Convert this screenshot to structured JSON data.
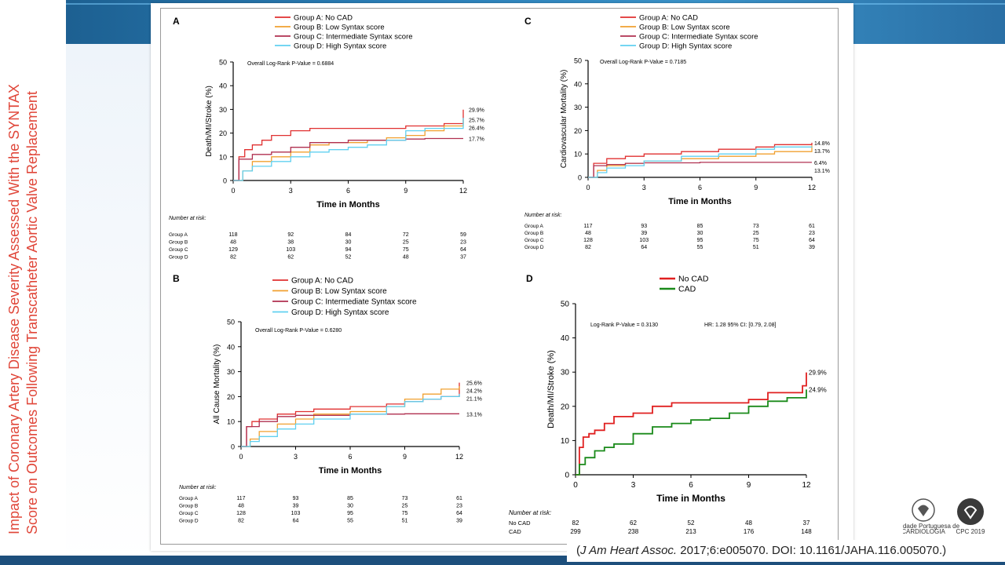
{
  "slide": {
    "side_title": "Impact of Coronary Artery Disease Severity Assessed With the SYNTAX Score on Outcomes Following Transcatheter Aortic Valve Replacement",
    "citation_journal": "J Am Heart Assoc.",
    "citation_rest": " 2017;6:e005070. DOI: 10.1161/JAHA.116.005070.)",
    "citation_open": "(",
    "logo1_line1": "Sociedade Portuguesa de",
    "logo1_line2": "CARDIOLOGIA",
    "logo2_label": "CPC 2019"
  },
  "colors": {
    "groupA": "#e03030",
    "groupB": "#f0a030",
    "groupC": "#b03050",
    "groupD": "#60d0f0",
    "noCAD": "#e02020",
    "CAD": "#1a8a1a",
    "accent": "#e0473a"
  },
  "chart_data": [
    {
      "panel": "A",
      "type": "line",
      "xlabel": "Time in Months",
      "ylabel": "Death/MI/Stroke (%)",
      "xlim": [
        0,
        12
      ],
      "ylim": [
        0,
        50
      ],
      "xticks": [
        0,
        3,
        6,
        9,
        12
      ],
      "yticks": [
        0,
        10,
        20,
        30,
        40,
        50
      ],
      "stat": "Overall Log-Rank P-Value = 0.6884",
      "series": [
        {
          "name": "Group A: No CAD",
          "color_key": "groupA",
          "x": [
            0,
            0.3,
            0.6,
            1,
            1.5,
            2,
            3,
            4,
            6,
            8,
            9,
            10,
            11,
            12
          ],
          "y": [
            0,
            10,
            13,
            15,
            17,
            19,
            21,
            22,
            22,
            22,
            23,
            23,
            24,
            29.9
          ],
          "end_label": "29.9%"
        },
        {
          "name": "Group B: Low Syntax score",
          "color_key": "groupB",
          "x": [
            0,
            0.5,
            1,
            2,
            3,
            4,
            5,
            6,
            7,
            8,
            9,
            10,
            11,
            12
          ],
          "y": [
            0,
            4,
            8,
            10,
            12,
            15,
            16,
            16,
            17,
            18,
            19,
            21,
            23,
            25.7
          ],
          "end_label": "25.7%"
        },
        {
          "name": "Group C: Intermediate Syntax score",
          "color_key": "groupC",
          "x": [
            0,
            0.3,
            1,
            2,
            3,
            4,
            6,
            8,
            9,
            10,
            11,
            12
          ],
          "y": [
            0,
            9,
            11,
            12,
            14,
            16,
            17,
            17,
            17.5,
            17.7,
            17.7,
            17.7
          ],
          "end_label": "17.7%"
        },
        {
          "name": "Group D: High Syntax score",
          "color_key": "groupD",
          "x": [
            0,
            0.5,
            1,
            2,
            3,
            4,
            5,
            6,
            7,
            8,
            9,
            10,
            11,
            12
          ],
          "y": [
            0,
            4,
            6,
            8,
            10,
            12,
            13,
            14,
            15,
            17,
            21,
            22,
            22,
            26.4
          ],
          "end_label": "26.4%"
        }
      ],
      "risk_title": "Number at risk:",
      "risk_times": [
        0,
        3,
        6,
        9,
        12
      ],
      "risk_rows": [
        {
          "label": "Group A",
          "values": [
            "118",
            "92",
            "84",
            "72",
            "59"
          ]
        },
        {
          "label": "Group B",
          "values": [
            "48",
            "38",
            "30",
            "25",
            "23"
          ]
        },
        {
          "label": "Group C",
          "values": [
            "129",
            "103",
            "94",
            "75",
            "64"
          ]
        },
        {
          "label": "Group D",
          "values": [
            "82",
            "62",
            "52",
            "48",
            "37"
          ]
        }
      ]
    },
    {
      "panel": "C",
      "type": "line",
      "xlabel": "Time in Months",
      "ylabel": "Cardiovascular Mortality (%)",
      "xlim": [
        0,
        12
      ],
      "ylim": [
        0,
        50
      ],
      "xticks": [
        0,
        3,
        6,
        9,
        12
      ],
      "yticks": [
        0,
        10,
        20,
        30,
        40,
        50
      ],
      "stat": "Overall Log-Rank P-Value = 0.7185",
      "series": [
        {
          "name": "Group A: No CAD",
          "color_key": "groupA",
          "x": [
            0,
            0.3,
            1,
            2,
            3,
            5,
            7,
            9,
            10,
            12
          ],
          "y": [
            0,
            6,
            8,
            9,
            10,
            11,
            12,
            13,
            14,
            14.8
          ],
          "end_label": "14.8%"
        },
        {
          "name": "Group B: Low Syntax score",
          "color_key": "groupB",
          "x": [
            0,
            0.5,
            1,
            2,
            3,
            5,
            7,
            9,
            10,
            12
          ],
          "y": [
            0,
            3,
            5,
            6,
            7,
            8,
            9,
            10,
            11,
            13.7
          ],
          "end_label": "13.7%"
        },
        {
          "name": "Group C: Intermediate Syntax score",
          "color_key": "groupC",
          "x": [
            0,
            0.3,
            1,
            2,
            3,
            6,
            9,
            12
          ],
          "y": [
            0,
            5,
            5.5,
            6,
            6.2,
            6.4,
            6.4,
            6.4
          ],
          "end_label": "6.4%"
        },
        {
          "name": "Group D: High Syntax score",
          "color_key": "groupD",
          "x": [
            0,
            0.5,
            1,
            2,
            3,
            5,
            7,
            9,
            10,
            12
          ],
          "y": [
            0,
            2,
            4,
            5,
            7,
            9,
            10,
            12,
            13,
            13.1
          ],
          "end_label": "13.1%"
        }
      ],
      "risk_title": "Number at risk:",
      "risk_times": [
        0,
        3,
        6,
        9,
        12
      ],
      "risk_rows": [
        {
          "label": "Group A",
          "values": [
            "117",
            "93",
            "85",
            "73",
            "61"
          ]
        },
        {
          "label": "Group B",
          "values": [
            "48",
            "39",
            "30",
            "25",
            "23"
          ]
        },
        {
          "label": "Group C",
          "values": [
            "128",
            "103",
            "95",
            "75",
            "64"
          ]
        },
        {
          "label": "Group D",
          "values": [
            "82",
            "64",
            "55",
            "51",
            "39"
          ]
        }
      ]
    },
    {
      "panel": "B",
      "type": "line",
      "xlabel": "Time in Months",
      "ylabel": "All Cause Mortality (%)",
      "xlim": [
        0,
        12
      ],
      "ylim": [
        0,
        50
      ],
      "xticks": [
        0,
        3,
        6,
        9,
        12
      ],
      "yticks": [
        0,
        10,
        20,
        30,
        40,
        50
      ],
      "stat": "Overall Log-Rank P-Value = 0.6280",
      "series": [
        {
          "name": "Group A: No CAD",
          "color_key": "groupA",
          "x": [
            0,
            0.3,
            0.6,
            1,
            2,
            3,
            4,
            6,
            8,
            9,
            10,
            11,
            12
          ],
          "y": [
            0,
            8,
            10,
            11,
            13,
            14,
            15,
            16,
            17,
            18,
            19,
            20,
            25.6
          ],
          "end_label": "25.6%"
        },
        {
          "name": "Group B: Low Syntax score",
          "color_key": "groupB",
          "x": [
            0,
            0.5,
            1,
            2,
            3,
            4,
            6,
            8,
            9,
            10,
            11,
            12
          ],
          "y": [
            0,
            3,
            6,
            9,
            11,
            13,
            14,
            16,
            19,
            21,
            23,
            24.2
          ],
          "end_label": "24.2%"
        },
        {
          "name": "Group C: Intermediate Syntax score",
          "color_key": "groupC",
          "x": [
            0,
            0.3,
            1,
            2,
            3,
            6,
            9,
            12
          ],
          "y": [
            0,
            8,
            10,
            12,
            12.5,
            13,
            13.1,
            13.1
          ],
          "end_label": "13.1%"
        },
        {
          "name": "Group D: High Syntax score",
          "color_key": "groupD",
          "x": [
            0,
            0.5,
            1,
            2,
            3,
            4,
            6,
            8,
            9,
            10,
            11,
            12
          ],
          "y": [
            0,
            2,
            4,
            7,
            9,
            11,
            13,
            16,
            18,
            19,
            20,
            21.1
          ],
          "end_label": "21.1%"
        }
      ],
      "risk_title": "Number at risk:",
      "risk_times": [
        0,
        3,
        6,
        9,
        12
      ],
      "risk_rows": [
        {
          "label": "Group A",
          "values": [
            "117",
            "93",
            "85",
            "73",
            "61"
          ]
        },
        {
          "label": "Group B",
          "values": [
            "48",
            "39",
            "30",
            "25",
            "23"
          ]
        },
        {
          "label": "Group C",
          "values": [
            "128",
            "103",
            "95",
            "75",
            "64"
          ]
        },
        {
          "label": "Group D",
          "values": [
            "82",
            "64",
            "55",
            "51",
            "39"
          ]
        }
      ]
    },
    {
      "panel": "D",
      "type": "line",
      "xlabel": "Time in Months",
      "ylabel": "Death/MI/Stroke (%)",
      "xlim": [
        0,
        12
      ],
      "ylim": [
        0,
        50
      ],
      "xticks": [
        0,
        3,
        6,
        9,
        12
      ],
      "yticks": [
        0,
        10,
        20,
        30,
        40,
        50
      ],
      "stat": "Log-Rank P-Value = 0.3130",
      "stat2": "HR: 1.28 95% CI: [0.79, 2.08]",
      "series": [
        {
          "name": "No CAD",
          "color_key": "noCAD",
          "x": [
            0,
            0.2,
            0.4,
            0.7,
            1,
            1.5,
            2,
            3,
            4,
            5,
            6,
            7,
            8,
            9,
            10,
            11,
            11.8,
            12
          ],
          "y": [
            0,
            8,
            11,
            12,
            13,
            15,
            17,
            18,
            20,
            21,
            21,
            21,
            21,
            22,
            24,
            24,
            26,
            29.9
          ],
          "end_label": "29.9%"
        },
        {
          "name": "CAD",
          "color_key": "CAD",
          "x": [
            0,
            0.2,
            0.5,
            1,
            1.5,
            2,
            3,
            4,
            5,
            6,
            7,
            8,
            9,
            10,
            11,
            12
          ],
          "y": [
            0,
            3,
            5,
            7,
            8,
            9,
            12,
            14,
            15,
            16,
            16.5,
            18,
            20,
            21.5,
            22.5,
            24.9
          ],
          "end_label": "24.9%"
        }
      ],
      "risk_title": "Number at risk:",
      "risk_times": [
        0,
        3,
        6,
        9,
        12
      ],
      "risk_rows": [
        {
          "label": "No CAD",
          "values": [
            "82",
            "62",
            "52",
            "48",
            "37"
          ]
        },
        {
          "label": "CAD",
          "values": [
            "299",
            "238",
            "213",
            "176",
            "148"
          ]
        }
      ]
    }
  ]
}
